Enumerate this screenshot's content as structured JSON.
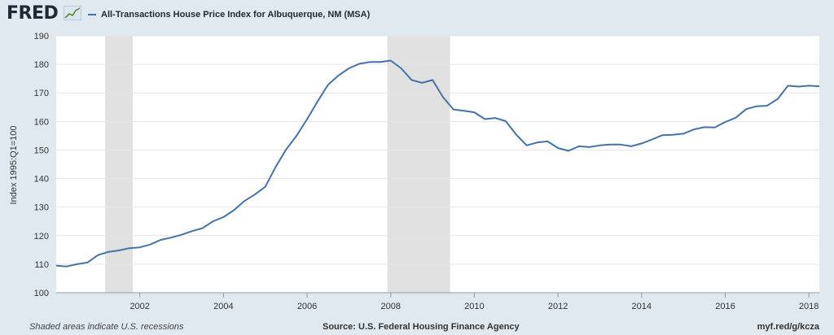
{
  "header": {
    "logo_text": "FRED",
    "logo_icon": "chart-trend-icon",
    "series_label": "All-Transactions House Price Index for Albuquerque, NM (MSA)"
  },
  "footer": {
    "note": "Shaded areas indicate U.S. recessions",
    "source": "Source: U.S. Federal Housing Finance Agency",
    "url": "myf.red/g/kcza"
  },
  "colors": {
    "line": "#4572a7",
    "recession": "#e1e1e1",
    "background": "#e1e9f0",
    "plot_bg": "#ffffff"
  },
  "chart_data": {
    "type": "line",
    "title": "",
    "ylabel": "Index 1995:Q1=100",
    "xlabel": "",
    "xlim": [
      2000.0,
      2018.25
    ],
    "ylim": [
      100,
      190
    ],
    "y_ticks": [
      100,
      110,
      120,
      130,
      140,
      150,
      160,
      170,
      180,
      190
    ],
    "x_ticks": [
      {
        "value": 2002,
        "label": "2002"
      },
      {
        "value": 2004,
        "label": "2004"
      },
      {
        "value": 2006,
        "label": "2006"
      },
      {
        "value": 2008,
        "label": "2008"
      },
      {
        "value": 2010,
        "label": "2010"
      },
      {
        "value": 2012,
        "label": "2012"
      },
      {
        "value": 2014,
        "label": "2014"
      },
      {
        "value": 2016,
        "label": "2016"
      },
      {
        "value": 2018,
        "label": "2018"
      }
    ],
    "grid": true,
    "recessions": [
      {
        "start": 2001.17,
        "end": 2001.83
      },
      {
        "start": 2007.92,
        "end": 2009.42
      }
    ],
    "series": [
      {
        "name": "All-Transactions House Price Index for Albuquerque, NM (MSA)",
        "x": [
          2000.0,
          2000.25,
          2000.5,
          2000.75,
          2001.0,
          2001.25,
          2001.5,
          2001.75,
          2002.0,
          2002.25,
          2002.5,
          2002.75,
          2003.0,
          2003.25,
          2003.5,
          2003.75,
          2004.0,
          2004.25,
          2004.5,
          2004.75,
          2005.0,
          2005.25,
          2005.5,
          2005.75,
          2006.0,
          2006.25,
          2006.5,
          2006.75,
          2007.0,
          2007.25,
          2007.5,
          2007.75,
          2008.0,
          2008.25,
          2008.5,
          2008.75,
          2009.0,
          2009.25,
          2009.5,
          2009.75,
          2010.0,
          2010.25,
          2010.5,
          2010.75,
          2011.0,
          2011.25,
          2011.5,
          2011.75,
          2012.0,
          2012.25,
          2012.5,
          2012.75,
          2013.0,
          2013.25,
          2013.5,
          2013.75,
          2014.0,
          2014.25,
          2014.5,
          2014.75,
          2015.0,
          2015.25,
          2015.5,
          2015.75,
          2016.0,
          2016.25,
          2016.5,
          2016.75,
          2017.0,
          2017.25,
          2017.5,
          2017.75,
          2018.0,
          2018.25
        ],
        "values": [
          109.5,
          109.2,
          110.0,
          110.6,
          113.2,
          114.3,
          114.8,
          115.6,
          115.9,
          116.9,
          118.5,
          119.3,
          120.3,
          121.6,
          122.6,
          125.0,
          126.5,
          128.9,
          132.1,
          134.4,
          137.1,
          144.1,
          150.2,
          155.0,
          160.8,
          167.0,
          172.8,
          176.1,
          178.6,
          180.2,
          180.8,
          180.8,
          181.3,
          178.6,
          174.5,
          173.5,
          174.5,
          168.5,
          164.2,
          163.7,
          163.2,
          160.8,
          161.2,
          160.1,
          155.4,
          151.6,
          152.6,
          153.0,
          150.7,
          149.7,
          151.3,
          151.0,
          151.6,
          151.9,
          151.9,
          151.3,
          152.3,
          153.7,
          155.2,
          155.3,
          155.7,
          157.2,
          158.0,
          157.9,
          159.8,
          161.3,
          164.3,
          165.3,
          165.5,
          167.8,
          172.5,
          172.2,
          172.5,
          172.3
        ]
      }
    ]
  }
}
